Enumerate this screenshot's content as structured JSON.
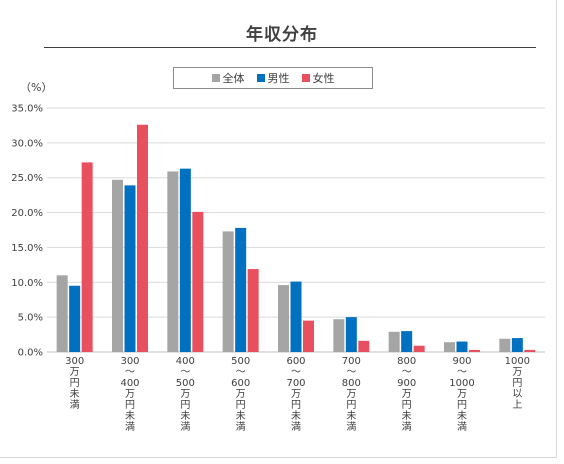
{
  "chart_data": {
    "type": "bar",
    "title": "年収分布",
    "ylabel": "（%）",
    "ylim": [
      0,
      35
    ],
    "yticks": [
      "0.0%",
      "5.0%",
      "10.0%",
      "15.0%",
      "20.0%",
      "25.0%",
      "30.0%",
      "35.0%"
    ],
    "grid": true,
    "legend_position": "top",
    "categories": [
      [
        "300",
        "万円未満"
      ],
      [
        "300",
        "～",
        "400",
        "万円未満"
      ],
      [
        "400",
        "～",
        "500",
        "万円未満"
      ],
      [
        "500",
        "～",
        "600",
        "万円未満"
      ],
      [
        "600",
        "～",
        "700",
        "万円未満"
      ],
      [
        "700",
        "～",
        "800",
        "万円未満"
      ],
      [
        "800",
        "～",
        "900",
        "万円未満"
      ],
      [
        "900",
        "～",
        "1000",
        "万円未満"
      ],
      [
        "1000",
        "万円以上"
      ]
    ],
    "series": [
      {
        "name": "全体",
        "color": "#a5a5a5",
        "values": [
          11.0,
          24.7,
          25.9,
          17.3,
          9.6,
          4.7,
          2.9,
          1.4,
          1.9
        ]
      },
      {
        "name": "男性",
        "color": "#0070c0",
        "values": [
          9.5,
          23.9,
          26.3,
          17.8,
          10.1,
          5.0,
          3.0,
          1.5,
          2.0
        ]
      },
      {
        "name": "女性",
        "color": "#e9505f",
        "values": [
          27.2,
          32.6,
          20.1,
          11.9,
          4.5,
          1.6,
          0.9,
          0.3,
          0.3
        ]
      }
    ]
  }
}
